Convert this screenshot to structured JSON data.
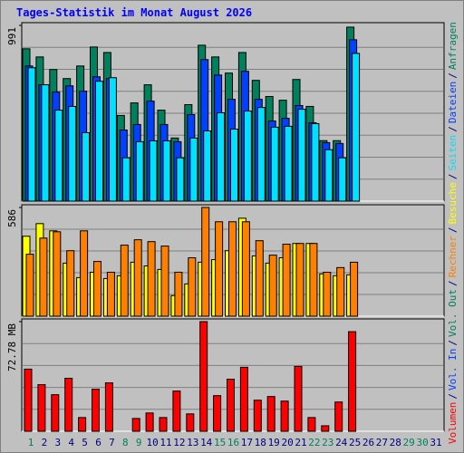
{
  "legend_separator": "/",
  "chart_data": [
    {
      "type": "bar",
      "title": "Tages-Statistik im Monat August 2026",
      "categories": [
        "1",
        "2",
        "3",
        "4",
        "5",
        "6",
        "7",
        "8",
        "9",
        "10",
        "11",
        "12",
        "13",
        "14",
        "15",
        "16",
        "17",
        "18",
        "19",
        "20",
        "21",
        "22",
        "23",
        "24",
        "25",
        "26",
        "27",
        "28",
        "29",
        "30",
        "31"
      ],
      "ylim": [
        0,
        991
      ],
      "yticks": [
        991
      ],
      "grid": 8,
      "series": [
        {
          "name": "Anfragen",
          "color": "#00805c",
          "values": [
            859,
            813,
            742,
            691,
            762,
            869,
            838,
            483,
            554,
            656,
            513,
            356,
            544,
            879,
            813,
            722,
            838,
            681,
            590,
            569,
            686,
            534,
            341,
            341,
            981,
            null,
            null,
            null,
            null,
            null,
            null
          ]
        },
        {
          "name": "Dateien",
          "color": "#0040ff",
          "values": [
            762,
            656,
            615,
            650,
            620,
            701,
            691,
            401,
            432,
            564,
            432,
            335,
            488,
            798,
            711,
            574,
            732,
            574,
            452,
            467,
            539,
            442,
            330,
            325,
            910,
            null,
            null,
            null,
            null,
            null,
            null
          ]
        },
        {
          "name": "Seiten",
          "color": "#00e0ff",
          "values": [
            752,
            656,
            513,
            534,
            386,
            676,
            696,
            244,
            335,
            340,
            340,
            244,
            356,
            396,
            498,
            406,
            508,
            528,
            417,
            422,
            518,
            437,
            290,
            244,
            833,
            null,
            null,
            null,
            null,
            null,
            null
          ]
        }
      ]
    },
    {
      "type": "bar",
      "categories": [
        "1",
        "2",
        "3",
        "4",
        "5",
        "6",
        "7",
        "8",
        "9",
        "10",
        "11",
        "12",
        "13",
        "14",
        "15",
        "16",
        "17",
        "18",
        "19",
        "20",
        "21",
        "22",
        "23",
        "24",
        "25",
        "26",
        "27",
        "28",
        "29",
        "30",
        "31"
      ],
      "ylim": [
        0,
        586
      ],
      "yticks": [
        586
      ],
      "grid": 5,
      "series": [
        {
          "name": "Besuche",
          "color": "#ffff00",
          "values": [
            431,
            499,
            460,
            286,
            208,
            237,
            203,
            218,
            291,
            271,
            252,
            111,
            174,
            291,
            305,
            353,
            528,
            325,
            286,
            315,
            392,
            392,
            228,
            218,
            223,
            null,
            null,
            null,
            null,
            null,
            null
          ]
        },
        {
          "name": "Rechner",
          "color": "#ff8000",
          "values": [
            334,
            421,
            455,
            353,
            460,
            295,
            237,
            383,
            412,
            402,
            378,
            237,
            315,
            586,
            509,
            509,
            509,
            407,
            329,
            388,
            392,
            392,
            237,
            262,
            291,
            null,
            null,
            null,
            null,
            null,
            null
          ]
        }
      ]
    },
    {
      "type": "bar",
      "categories": [
        "1",
        "2",
        "3",
        "4",
        "5",
        "6",
        "7",
        "8",
        "9",
        "10",
        "11",
        "12",
        "13",
        "14",
        "15",
        "16",
        "17",
        "18",
        "19",
        "20",
        "21",
        "22",
        "23",
        "24",
        "25",
        "26",
        "27",
        "28",
        "29",
        "30",
        "31"
      ],
      "category_colors": [
        "#00805c",
        "#000080",
        "#000080",
        "#000080",
        "#000080",
        "#000080",
        "#000080",
        "#00805c",
        "#00805c",
        "#000080",
        "#000080",
        "#000080",
        "#000080",
        "#000080",
        "#00805c",
        "#00805c",
        "#000080",
        "#000080",
        "#000080",
        "#000080",
        "#000080",
        "#00805c",
        "#00805c",
        "#000080",
        "#000080",
        "#000080",
        "#000080",
        "#000080",
        "#00805c",
        "#00805c",
        "#000080"
      ],
      "ylim": [
        0,
        72.78
      ],
      "yticks": [
        {
          "value": 72.78,
          "label": "72.78 MB"
        }
      ],
      "grid": 5,
      "series": [
        {
          "name": "Volumen",
          "color": "#ff0000",
          "values": [
            41.24,
            30.93,
            24.26,
            35.18,
            9.1,
            27.9,
            32.14,
            0,
            8.49,
            12.13,
            9.1,
            26.69,
            11.52,
            72.78,
            23.65,
            34.57,
            42.46,
            20.62,
            23.05,
            20.01,
            43.06,
            9.1,
            3.64,
            19.41,
            66.11,
            null,
            null,
            null,
            null,
            null,
            null
          ]
        }
      ],
      "legend_entries": [
        {
          "name": "Vol. In",
          "color": "#0040ff"
        },
        {
          "name": "Vol. Out",
          "color": "#00805c"
        }
      ]
    }
  ]
}
